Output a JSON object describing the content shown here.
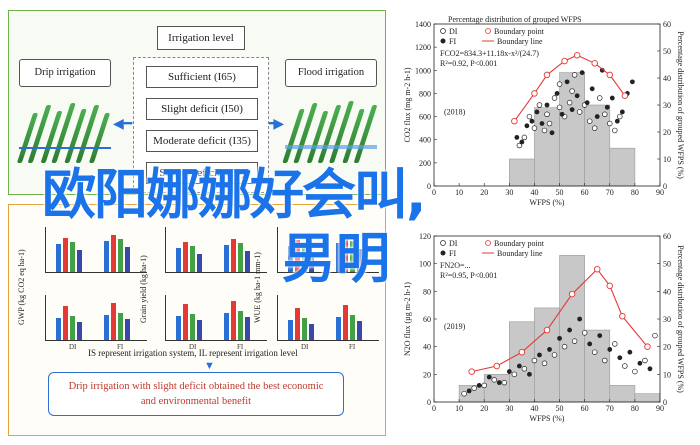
{
  "schematic": {
    "irrigation_level_title": "Irrigation level",
    "drip_title": "Drip irrigation",
    "flood_title": "Flood irrigation",
    "levels": [
      "Sufficient (I65)",
      "Slight deficit (I50)",
      "Moderate deficit (I35)",
      "Severe deficit (I20)"
    ],
    "metrics": [
      "GWP (kg CO2 eq ha-1)",
      "Grain yield (kg ha-1)",
      "WUE (kg ha-1 mm-1)"
    ],
    "group_labels": [
      "DI",
      "FI"
    ],
    "note": "IS represent irrigation system, IL represent irrigation level",
    "result_line1": "Drip irrigation with slight deficit obtained the best economic",
    "result_line2": "and environmental benefit",
    "colors": {
      "top_border": "#6fb24a",
      "bottom_border": "#e6a33e",
      "accent": "#2a6fd6",
      "result_text": "#c0392b"
    }
  },
  "overlay": {
    "line1": "欧阳娜娜好会叫,",
    "line2": "男明"
  },
  "chart_data": [
    {
      "type": "scatter",
      "title": "Percentage distribution of grouped WFPS",
      "year_label": "(2018)",
      "xlabel": "WFPS (%)",
      "ylabel": "CO2 flux (mg m-2 h-1)",
      "y2label": "Percentage distribution of grouped WFPS (%)",
      "xlim": [
        0,
        90
      ],
      "ylim": [
        0,
        1400
      ],
      "y2lim": [
        0,
        60
      ],
      "xticks": [
        0,
        10,
        20,
        30,
        40,
        50,
        60,
        70,
        80,
        90
      ],
      "yticks": [
        0,
        200,
        400,
        600,
        800,
        1000,
        1200,
        1400
      ],
      "y2ticks": [
        0,
        10,
        20,
        30,
        40,
        50,
        60
      ],
      "legend": [
        "DI",
        "FI",
        "Boundary point",
        "Boundary line"
      ],
      "equation": "FCO2=834.3+11.18x-x²/(24.7)",
      "stats": "R²=0.92, P<0.001",
      "hist": {
        "bins": [
          [
            30,
            40,
            10
          ],
          [
            40,
            50,
            29
          ],
          [
            50,
            60,
            42
          ],
          [
            60,
            70,
            30
          ],
          [
            70,
            80,
            14
          ]
        ]
      },
      "boundary_points": {
        "x": [
          32,
          40,
          45,
          52,
          57,
          64,
          70,
          76
        ],
        "y": [
          560,
          800,
          960,
          1080,
          1130,
          1060,
          960,
          780
        ]
      },
      "points_di": {
        "x": [
          34,
          36,
          38,
          40,
          42,
          44,
          45,
          46,
          48,
          50,
          50,
          52,
          54,
          55,
          56,
          58,
          60,
          62,
          64,
          66,
          68,
          70,
          72,
          74
        ],
        "y": [
          350,
          420,
          600,
          500,
          700,
          480,
          620,
          540,
          760,
          680,
          880,
          600,
          720,
          820,
          960,
          640,
          700,
          560,
          500,
          760,
          620,
          540,
          480,
          600
        ]
      },
      "points_fi": {
        "x": [
          33,
          35,
          37,
          39,
          41,
          43,
          45,
          47,
          49,
          51,
          53,
          55,
          57,
          59,
          61,
          63,
          65,
          67,
          69,
          71,
          73,
          75,
          77,
          79
        ],
        "y": [
          420,
          380,
          520,
          560,
          640,
          540,
          700,
          460,
          800,
          620,
          900,
          660,
          780,
          980,
          720,
          840,
          600,
          1000,
          680,
          760,
          560,
          640,
          800,
          900
        ]
      }
    },
    {
      "type": "scatter",
      "year_label": "(2019)",
      "xlabel": "WFPS (%)",
      "ylabel": "N2O flux (µg m-2 h-1)",
      "y2label": "Percentage distribution of grouped WFPS (%)",
      "xlim": [
        0,
        90
      ],
      "ylim": [
        0,
        120
      ],
      "y2lim": [
        0,
        60
      ],
      "xticks": [
        0,
        10,
        20,
        30,
        40,
        50,
        60,
        70,
        80,
        90
      ],
      "yticks": [
        0,
        20,
        40,
        60,
        80,
        100,
        120
      ],
      "y2ticks": [
        0,
        10,
        20,
        30,
        40,
        50,
        60
      ],
      "legend": [
        "DI",
        "FI",
        "Boundary point",
        "Boundary line"
      ],
      "equation": "FN2O=...",
      "stats": "R²=0.95, P<0.001",
      "hist": {
        "bins": [
          [
            10,
            20,
            6
          ],
          [
            20,
            30,
            10
          ],
          [
            30,
            40,
            29
          ],
          [
            40,
            50,
            34
          ],
          [
            50,
            60,
            53
          ],
          [
            60,
            70,
            26
          ],
          [
            70,
            80,
            6
          ],
          [
            80,
            90,
            3
          ]
        ]
      },
      "boundary_points": {
        "x": [
          15,
          25,
          35,
          45,
          55,
          65,
          70,
          75,
          85
        ],
        "y": [
          22,
          26,
          36,
          52,
          78,
          96,
          84,
          62,
          40
        ]
      },
      "points_di": {
        "x": [
          12,
          16,
          20,
          24,
          28,
          32,
          36,
          40,
          44,
          48,
          52,
          56,
          60,
          64,
          68,
          72,
          76,
          80,
          84,
          88
        ],
        "y": [
          6,
          10,
          12,
          16,
          14,
          20,
          24,
          30,
          28,
          34,
          40,
          44,
          50,
          36,
          30,
          42,
          26,
          22,
          30,
          48
        ]
      },
      "points_fi": {
        "x": [
          14,
          18,
          22,
          26,
          30,
          34,
          38,
          42,
          46,
          50,
          54,
          58,
          62,
          66,
          70,
          74,
          78,
          82,
          86
        ],
        "y": [
          8,
          12,
          18,
          14,
          22,
          26,
          20,
          34,
          38,
          46,
          52,
          60,
          42,
          48,
          38,
          32,
          36,
          28,
          24
        ]
      }
    }
  ]
}
